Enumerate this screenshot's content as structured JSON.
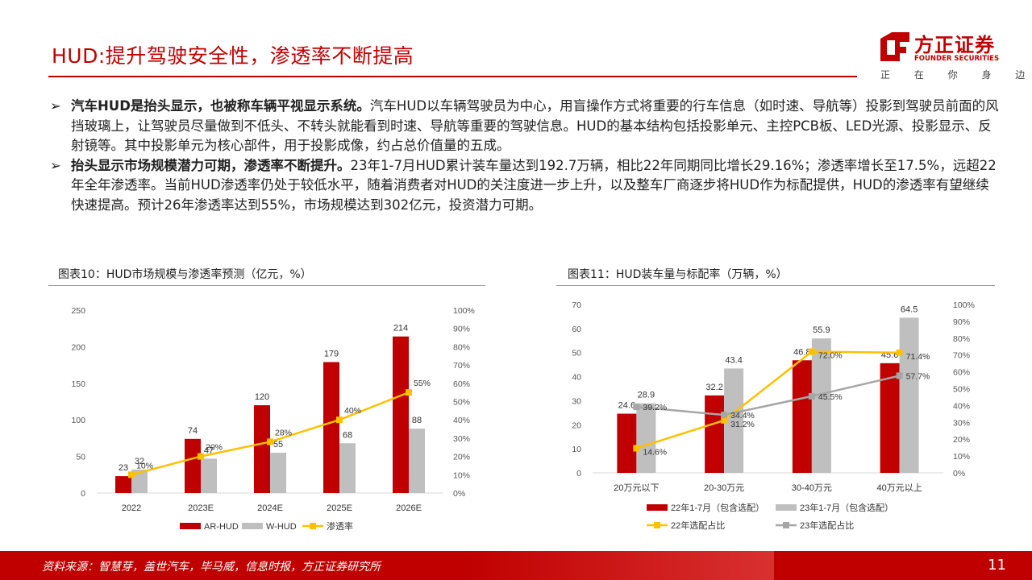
{
  "header": {
    "title": "HUD:提升驾驶安全性，渗透率不断提高",
    "logo_main": "方正证券",
    "logo_en": "FOUNDER SECURITIES",
    "logo_tagline": "正 在 你 身 边"
  },
  "bullets": [
    {
      "marker": "➢",
      "bold": "汽车HUD是抬头显示，也被称车辆平视显示系统。",
      "text": "汽车HUD以车辆驾驶员为中心，用盲操作方式将重要的行车信息（如时速、导航等）投影到驾驶员前面的风挡玻璃上，让驾驶员尽量做到不低头、不转头就能看到时速、导航等重要的驾驶信息。HUD的基本结构包括投影单元、主控PCB板、LED光源、投影显示、反射镜等。其中投影单元为核心部件，用于投影成像，约占总价值量的五成。"
    },
    {
      "marker": "➢",
      "bold": "抬头显示市场规模潜力可期，渗透率不断提升。",
      "text": "23年1-7月HUD累计装车量达到192.7万辆，相比22年同期同比增长29.16%；渗透率增长至17.5%，远超22年全年渗透率。当前HUD渗透率仍处于较低水平，随着消费者对HUD的关注度进一步上升，以及整车厂商逐步将HUD作为标配提供，HUD的渗透率有望继续快速提高。预计26年渗透率达到55%，市场规模达到302亿元，投资潜力可期。"
    }
  ],
  "colors": {
    "red": "#c00000",
    "gray": "#bfbfbf",
    "yellow": "#ffc000",
    "darkgray": "#a6a6a6"
  },
  "chart_data": [
    {
      "type": "bar",
      "title": "图表10：HUD市场规模与渗透率预测（亿元，%）",
      "categories": [
        "2022",
        "2023E",
        "2024E",
        "2025E",
        "2026E"
      ],
      "series": [
        {
          "name": "AR-HUD",
          "kind": "bar",
          "axis": "left",
          "values": [
            23,
            74,
            120,
            179,
            214
          ],
          "labels": [
            "23",
            "74",
            "120",
            "179",
            "214"
          ]
        },
        {
          "name": "W-HUD",
          "kind": "bar",
          "axis": "left",
          "values": [
            32,
            47,
            55,
            68,
            88
          ],
          "labels": [
            "32",
            "47",
            "55",
            "68",
            "88"
          ]
        },
        {
          "name": "渗透率",
          "kind": "line",
          "axis": "right",
          "values": [
            10,
            20,
            28,
            40,
            55
          ],
          "labels": [
            "10%",
            "20%",
            "28%",
            "40%",
            "55%"
          ]
        }
      ],
      "ylim": [
        0,
        250
      ],
      "y_ticks": [
        "0",
        "50",
        "100",
        "150",
        "200",
        "250"
      ],
      "y2lim": [
        0,
        100
      ],
      "y2_ticks": [
        "0%",
        "10%",
        "20%",
        "30%",
        "40%",
        "50%",
        "60%",
        "70%",
        "80%",
        "90%",
        "100%"
      ],
      "grid": false,
      "legend": "bottom"
    },
    {
      "type": "bar",
      "title": "图表11：HUD装车量与标配率（万辆，%）",
      "categories": [
        "20万元以下",
        "20-30万元",
        "30-40万元",
        "40万元以上"
      ],
      "series": [
        {
          "name": "22年1-7月（包含选配）",
          "kind": "bar",
          "axis": "left",
          "values": [
            24.6,
            32.2,
            46.8,
            45.6
          ],
          "labels": [
            "24.6",
            "32.2",
            "46.8",
            "45.6"
          ]
        },
        {
          "name": "23年1-7月（包含选配）",
          "kind": "bar",
          "axis": "left",
          "values": [
            28.9,
            43.4,
            55.9,
            64.5
          ],
          "labels": [
            "28.9",
            "43.4",
            "55.9",
            "64.5"
          ]
        },
        {
          "name": "22年选配占比",
          "kind": "line",
          "axis": "right",
          "values": [
            14.6,
            31.2,
            72.0,
            71.4
          ],
          "labels": [
            "14.6%",
            "31.2%",
            "72.0%",
            "71.4%"
          ]
        },
        {
          "name": "23年选配占比",
          "kind": "line",
          "axis": "right",
          "values": [
            39.2,
            34.4,
            45.5,
            57.7
          ],
          "labels": [
            "39.2%",
            "34.4%",
            "45.5%",
            "57.7%"
          ]
        }
      ],
      "ylim": [
        0,
        70
      ],
      "y_ticks": [
        "0",
        "10",
        "20",
        "30",
        "40",
        "50",
        "60",
        "70"
      ],
      "y2lim": [
        0,
        100
      ],
      "y2_ticks": [
        "0%",
        "10%",
        "20%",
        "30%",
        "40%",
        "50%",
        "60%",
        "70%",
        "80%",
        "90%",
        "100%"
      ],
      "grid": false,
      "legend": "bottom"
    }
  ],
  "footer": {
    "source": "资料来源：智慧芽，盖世汽车，毕马威，信息时报，方正证券研究所",
    "page": "11"
  }
}
